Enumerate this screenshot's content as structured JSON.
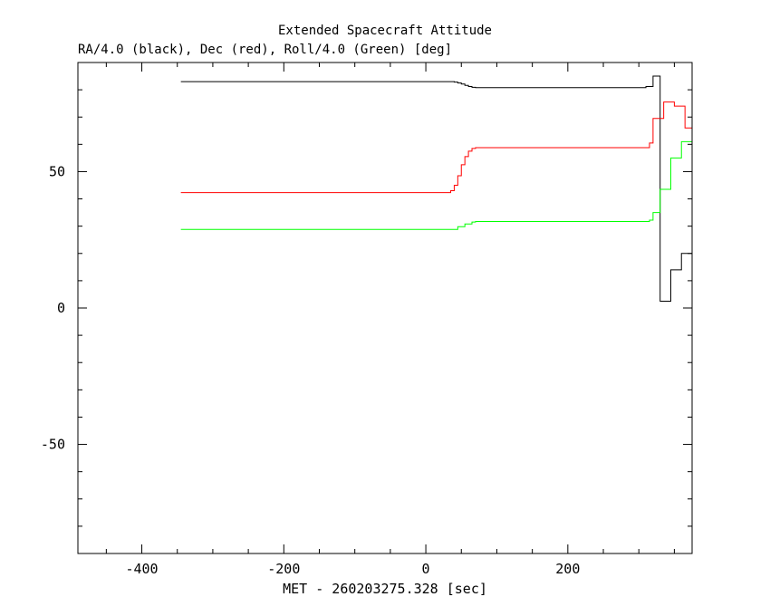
{
  "chart_data": {
    "type": "line",
    "title": "Extended Spacecraft Attitude",
    "subtitle": "RA/4.0 (black), Dec (red), Roll/4.0 (Green) [deg]",
    "xlabel": "MET - 260203275.328 [sec]",
    "ylabel": "",
    "xlim": [
      -490,
      375
    ],
    "ylim": [
      -90,
      90
    ],
    "x_ticks": [
      -400,
      -200,
      0,
      200
    ],
    "x_tick_labels": [
      "-400",
      "-200",
      "0",
      "200"
    ],
    "y_ticks": [
      -50,
      0,
      50
    ],
    "y_tick_labels": [
      "-50",
      "0",
      "50"
    ],
    "series": [
      {
        "color": "#000000",
        "step": true,
        "points": [
          [
            -345,
            83
          ],
          [
            30,
            83
          ],
          [
            40,
            82.8
          ],
          [
            45,
            82.5
          ],
          [
            50,
            82.1
          ],
          [
            55,
            81.6
          ],
          [
            60,
            81.2
          ],
          [
            65,
            80.9
          ],
          [
            70,
            80.8
          ],
          [
            300,
            80.8
          ],
          [
            310,
            81.2
          ],
          [
            320,
            85
          ],
          [
            330,
            2.5
          ],
          [
            345,
            14
          ],
          [
            360,
            20
          ],
          [
            375,
            20.5
          ]
        ]
      },
      {
        "color": "#ff0000",
        "step": true,
        "points": [
          [
            -345,
            42.3
          ],
          [
            30,
            42.3
          ],
          [
            35,
            43
          ],
          [
            40,
            45
          ],
          [
            45,
            48.5
          ],
          [
            50,
            52.5
          ],
          [
            55,
            55.5
          ],
          [
            60,
            57.5
          ],
          [
            65,
            58.5
          ],
          [
            70,
            58.8
          ],
          [
            300,
            58.8
          ],
          [
            315,
            60.5
          ],
          [
            320,
            69.5
          ],
          [
            335,
            75.5
          ],
          [
            350,
            74
          ],
          [
            365,
            66
          ],
          [
            375,
            66
          ]
        ]
      },
      {
        "color": "#00ff00",
        "step": true,
        "points": [
          [
            -345,
            28.8
          ],
          [
            35,
            28.8
          ],
          [
            45,
            29.8
          ],
          [
            55,
            30.8
          ],
          [
            65,
            31.5
          ],
          [
            70,
            31.7
          ],
          [
            305,
            31.7
          ],
          [
            315,
            32.2
          ],
          [
            320,
            35
          ],
          [
            330,
            43.5
          ],
          [
            345,
            55
          ],
          [
            360,
            61
          ],
          [
            375,
            61
          ]
        ]
      }
    ]
  }
}
